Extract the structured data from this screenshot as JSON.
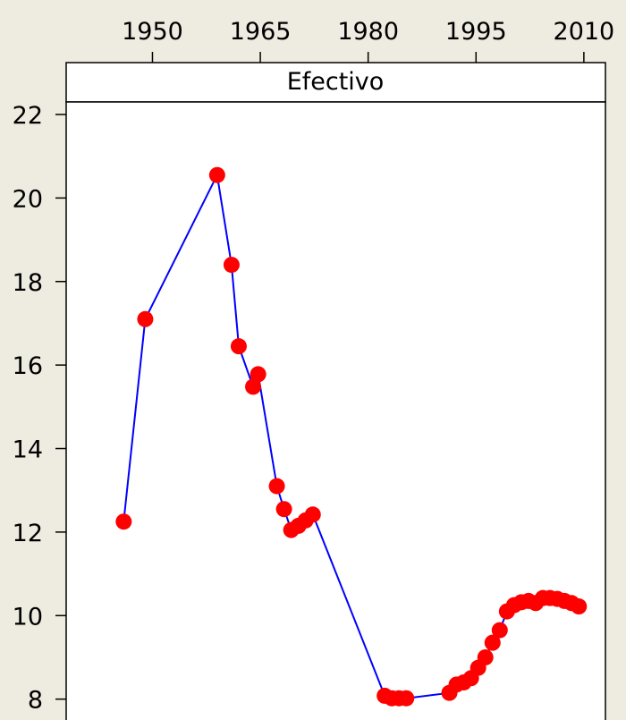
{
  "chart_data": {
    "type": "line",
    "panel_title": "Efectivo",
    "x_ticks": [
      1950,
      1965,
      1980,
      1995,
      2010
    ],
    "y_ticks": [
      8,
      10,
      12,
      14,
      16,
      18,
      20,
      22
    ],
    "xlim": [
      1938,
      2013
    ],
    "ylim": [
      7.5,
      22.3
    ],
    "series": [
      {
        "x": [
          1946,
          1949,
          1959,
          1961,
          1962,
          1964,
          1964.7,
          1967.3,
          1968.3,
          1969.3,
          1970.3,
          1971.3,
          1972.3,
          1982.3,
          1983.3,
          1984.3,
          1985.3,
          1991.3,
          1992.3,
          1993.3,
          1994.3,
          1995.3,
          1996.3,
          1997.3,
          1998.3,
          1999.3,
          2000.3,
          2001.3,
          2002.3,
          2003.3,
          2004.3,
          2005.3,
          2006.3,
          2007.3,
          2008.3,
          2009.3
        ],
        "y": [
          12.25,
          17.1,
          20.55,
          18.4,
          16.45,
          15.48,
          15.78,
          13.1,
          12.55,
          12.05,
          12.15,
          12.28,
          12.42,
          8.08,
          8.02,
          8.02,
          8.02,
          8.15,
          8.35,
          8.4,
          8.5,
          8.75,
          9.0,
          9.35,
          9.65,
          10.1,
          10.25,
          10.32,
          10.35,
          10.3,
          10.42,
          10.42,
          10.4,
          10.35,
          10.3,
          10.22
        ],
        "line_color": "#0000ff",
        "marker_color": "#ff0000"
      }
    ],
    "grid": false,
    "legend": "none"
  }
}
